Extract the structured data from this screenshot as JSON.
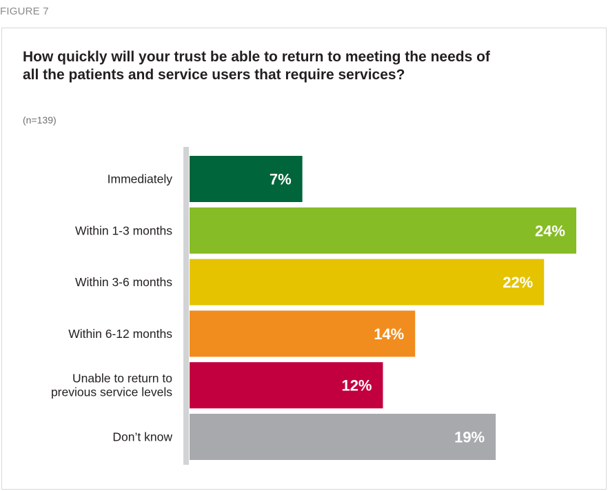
{
  "figure_label": "FIGURE 7",
  "chart_data": {
    "type": "bar",
    "orientation": "horizontal",
    "title": "How quickly will your trust be able to return to meeting the needs of all the patients and service users that require services?",
    "subtitle": "(n=139)",
    "categories": [
      [
        "Immediately"
      ],
      [
        "Within 1-3 months"
      ],
      [
        "Within 3-6 months"
      ],
      [
        "Within 6-12 months"
      ],
      [
        "Unable to return to",
        "previous service levels"
      ],
      [
        "Don’t know"
      ]
    ],
    "values": [
      7,
      24,
      22,
      14,
      12,
      19
    ],
    "value_labels": [
      "7%",
      "24%",
      "22%",
      "14%",
      "12%",
      "19%"
    ],
    "colors": [
      "#00653a",
      "#86bc25",
      "#e5c300",
      "#f08d1e",
      "#c2003f",
      "#a7a9ac"
    ],
    "axis_color": "#d1d3d4",
    "xlim": [
      0,
      24
    ],
    "grid": false,
    "legend": "none"
  }
}
